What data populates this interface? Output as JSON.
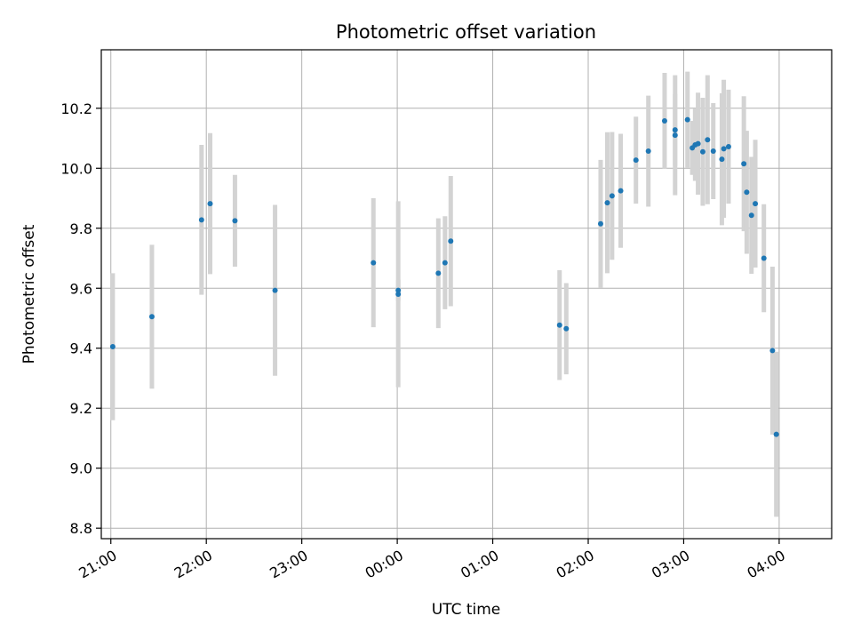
{
  "chart_data": {
    "type": "scatter",
    "title": "Photometric offset variation",
    "xlabel": "UTC time",
    "ylabel": "Photometric offset",
    "grid": true,
    "xlim": [
      20.9,
      28.55
    ],
    "ylim": [
      8.765,
      10.395
    ],
    "x_tick_values": [
      21,
      22,
      23,
      24,
      25,
      26,
      27,
      28
    ],
    "x_tick_labels": [
      "21:00",
      "22:00",
      "23:00",
      "00:00",
      "01:00",
      "02:00",
      "03:00",
      "04:00"
    ],
    "y_ticks": [
      8.8,
      9.0,
      9.2,
      9.4,
      9.6,
      9.8,
      10.0,
      10.2
    ],
    "y_tick_labels": [
      "8.8",
      "9.0",
      "9.2",
      "9.4",
      "9.6",
      "9.8",
      "10.0",
      "10.2"
    ],
    "point_color": "#1f77b4",
    "errorbar_color": "#d3d3d3",
    "points": [
      {
        "x": 21.02,
        "y": 9.405,
        "err": 0.245
      },
      {
        "x": 21.43,
        "y": 9.505,
        "err": 0.24
      },
      {
        "x": 21.95,
        "y": 9.828,
        "err": 0.25
      },
      {
        "x": 22.04,
        "y": 9.882,
        "err": 0.235
      },
      {
        "x": 22.3,
        "y": 9.825,
        "err": 0.153
      },
      {
        "x": 22.72,
        "y": 9.593,
        "err": 0.285
      },
      {
        "x": 23.75,
        "y": 9.685,
        "err": 0.215
      },
      {
        "x": 24.01,
        "y": 9.593,
        "err": 0.035
      },
      {
        "x": 24.01,
        "y": 9.58,
        "err": 0.31
      },
      {
        "x": 24.43,
        "y": 9.65,
        "err": 0.183
      },
      {
        "x": 24.5,
        "y": 9.685,
        "err": 0.155
      },
      {
        "x": 24.56,
        "y": 9.757,
        "err": 0.217
      },
      {
        "x": 25.7,
        "y": 9.477,
        "err": 0.183
      },
      {
        "x": 25.77,
        "y": 9.465,
        "err": 0.152
      },
      {
        "x": 26.13,
        "y": 9.815,
        "err": 0.213
      },
      {
        "x": 26.2,
        "y": 9.885,
        "err": 0.235
      },
      {
        "x": 26.25,
        "y": 9.908,
        "err": 0.213
      },
      {
        "x": 26.34,
        "y": 9.925,
        "err": 0.19
      },
      {
        "x": 26.5,
        "y": 10.027,
        "err": 0.145
      },
      {
        "x": 26.63,
        "y": 10.057,
        "err": 0.185
      },
      {
        "x": 26.8,
        "y": 10.158,
        "err": 0.16
      },
      {
        "x": 26.91,
        "y": 10.128,
        "err": 0.12
      },
      {
        "x": 26.91,
        "y": 10.11,
        "err": 0.2
      },
      {
        "x": 27.04,
        "y": 10.162,
        "err": 0.16
      },
      {
        "x": 27.09,
        "y": 10.068,
        "err": 0.09
      },
      {
        "x": 27.12,
        "y": 10.078,
        "err": 0.12
      },
      {
        "x": 27.15,
        "y": 10.082,
        "err": 0.17
      },
      {
        "x": 27.2,
        "y": 10.055,
        "err": 0.18
      },
      {
        "x": 27.25,
        "y": 10.095,
        "err": 0.215
      },
      {
        "x": 27.31,
        "y": 10.057,
        "err": 0.16
      },
      {
        "x": 27.4,
        "y": 10.03,
        "err": 0.22
      },
      {
        "x": 27.42,
        "y": 10.065,
        "err": 0.23
      },
      {
        "x": 27.47,
        "y": 10.072,
        "err": 0.19
      },
      {
        "x": 27.63,
        "y": 10.015,
        "err": 0.225
      },
      {
        "x": 27.66,
        "y": 9.92,
        "err": 0.205
      },
      {
        "x": 27.71,
        "y": 9.843,
        "err": 0.195
      },
      {
        "x": 27.75,
        "y": 9.882,
        "err": 0.213
      },
      {
        "x": 27.84,
        "y": 9.7,
        "err": 0.18
      },
      {
        "x": 27.93,
        "y": 9.392,
        "err": 0.28
      },
      {
        "x": 27.97,
        "y": 9.113,
        "err": 0.275
      }
    ]
  }
}
